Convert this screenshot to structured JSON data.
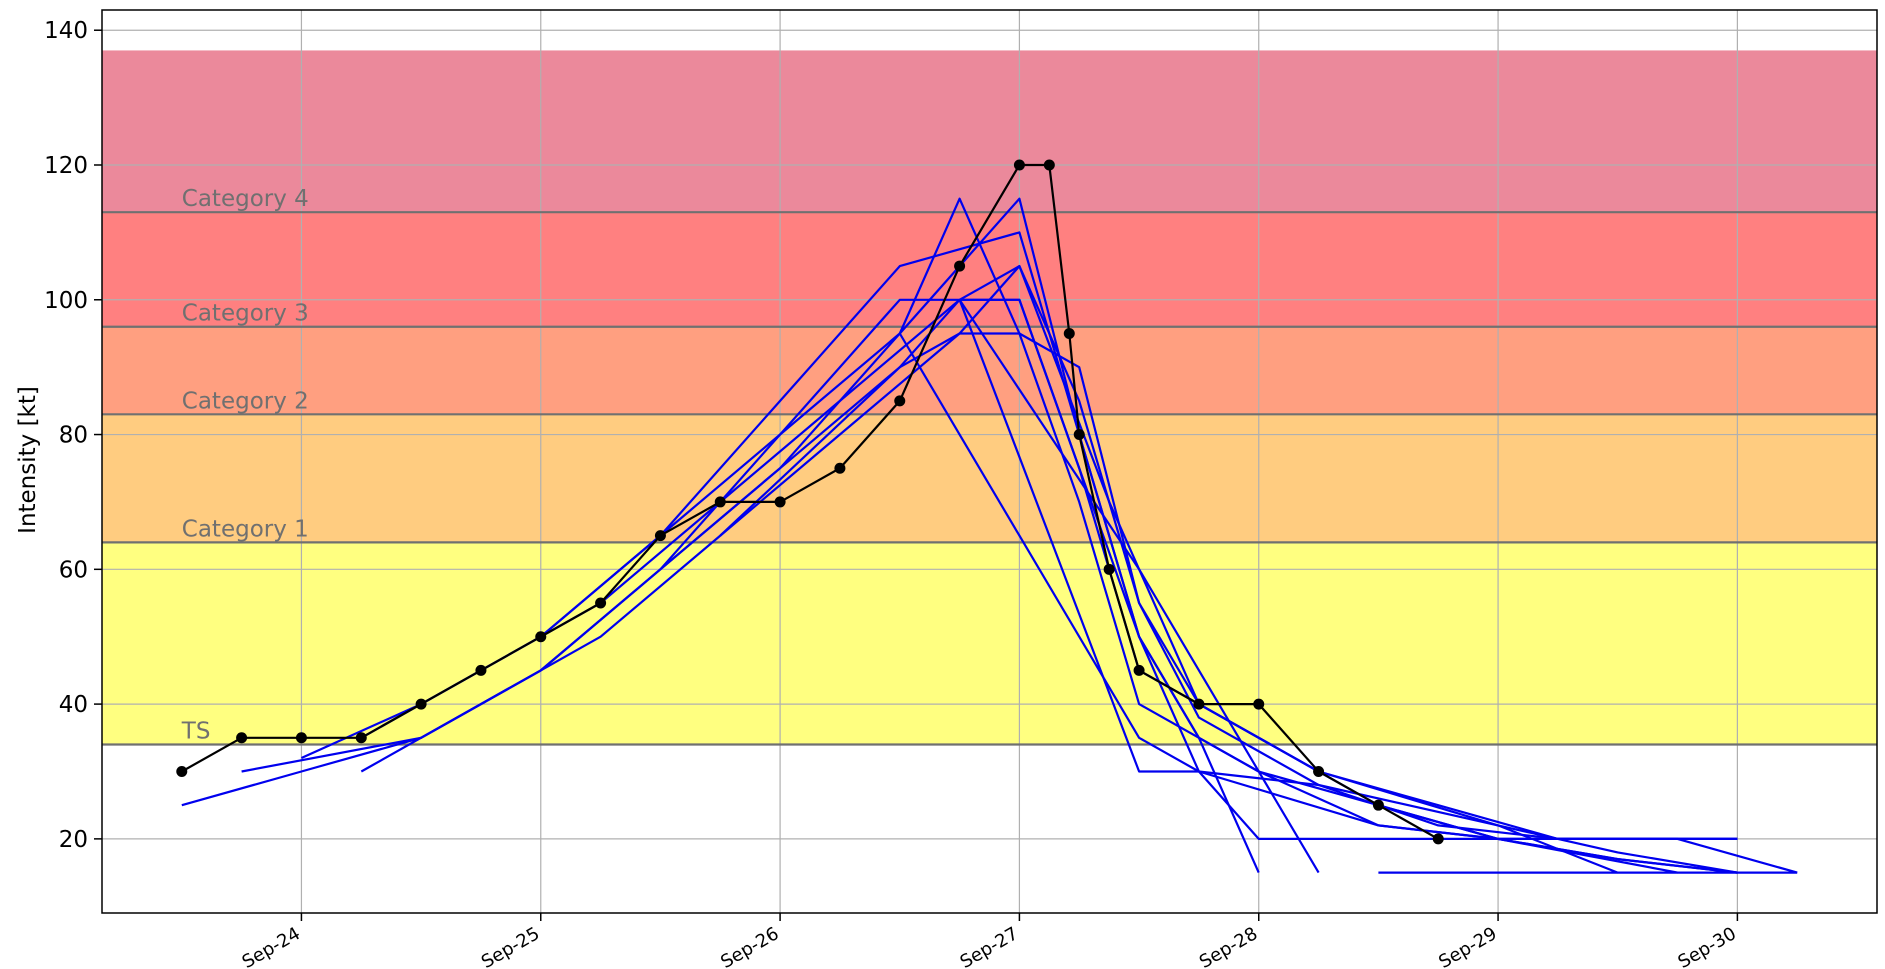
{
  "chart_data": {
    "type": "line",
    "title": "",
    "xlabel": "",
    "ylabel": "Intensity [kt]",
    "x_unit": "date",
    "xlim": [
      "2023-09-23 04:00",
      "2023-09-30 14:00"
    ],
    "ylim": [
      9,
      143
    ],
    "grid": true,
    "x_ticks": [
      {
        "x": "2023-09-24 00:00",
        "label": "Sep-24"
      },
      {
        "x": "2023-09-25 00:00",
        "label": "Sep-25"
      },
      {
        "x": "2023-09-26 00:00",
        "label": "Sep-26"
      },
      {
        "x": "2023-09-27 00:00",
        "label": "Sep-27"
      },
      {
        "x": "2023-09-28 00:00",
        "label": "Sep-28"
      },
      {
        "x": "2023-09-29 00:00",
        "label": "Sep-29"
      },
      {
        "x": "2023-09-30 00:00",
        "label": "Sep-30"
      }
    ],
    "y_ticks": [
      20,
      40,
      60,
      80,
      100,
      120,
      140
    ],
    "bands": [
      {
        "label": "TS",
        "from": 34,
        "to": 64,
        "color": "#ffff80"
      },
      {
        "label": "Category 1",
        "from": 64,
        "to": 83,
        "color": "#ffcc80"
      },
      {
        "label": "Category 2",
        "from": 83,
        "to": 96,
        "color": "#ff9f80"
      },
      {
        "label": "Category 3",
        "from": 96,
        "to": 113,
        "color": "#ff8080"
      },
      {
        "label": "Category 4",
        "from": 113,
        "to": 137,
        "color": "#eb899b"
      }
    ],
    "colors": {
      "observed": "#000000",
      "forecast": "#0000ee",
      "threshold_line": "#707070",
      "band_label": "#707070",
      "grid": "#b0b0b0"
    },
    "observed": {
      "x": [
        "2023-09-23 12:00",
        "2023-09-23 18:00",
        "2023-09-24 00:00",
        "2023-09-24 06:00",
        "2023-09-24 12:00",
        "2023-09-24 18:00",
        "2023-09-25 00:00",
        "2023-09-25 06:00",
        "2023-09-25 12:00",
        "2023-09-25 18:00",
        "2023-09-26 00:00",
        "2023-09-26 06:00",
        "2023-09-26 12:00",
        "2023-09-26 18:00",
        "2023-09-27 00:00",
        "2023-09-27 03:00",
        "2023-09-27 05:00",
        "2023-09-27 06:00",
        "2023-09-27 09:00",
        "2023-09-27 12:00",
        "2023-09-27 18:00",
        "2023-09-28 00:00",
        "2023-09-28 06:00",
        "2023-09-28 12:00",
        "2023-09-28 18:00"
      ],
      "y": [
        30,
        35,
        35,
        35,
        40,
        45,
        50,
        55,
        65,
        70,
        70,
        75,
        85,
        105,
        120,
        120,
        95,
        80,
        60,
        45,
        40,
        40,
        30,
        25,
        20
      ]
    },
    "series": [
      {
        "x": [
          "2023-09-23 12:00",
          "2023-09-24 00:00",
          "2023-09-24 12:00",
          "2023-09-25 00:00",
          "2023-09-25 12:00",
          "2023-09-26 00:00",
          "2023-09-26 12:00",
          "2023-09-26 18:00",
          "2023-09-27 00:00",
          "2023-09-27 06:00",
          "2023-09-27 12:00",
          "2023-09-28 00:00",
          "2023-09-28 12:00",
          "2023-09-29 00:00",
          "2023-09-29 12:00",
          "2023-09-30 00:00"
        ],
        "y": [
          25,
          30,
          35,
          45,
          60,
          75,
          95,
          115,
          95,
          70,
          40,
          30,
          22,
          20,
          20,
          20
        ]
      },
      {
        "x": [
          "2023-09-23 18:00",
          "2023-09-24 12:00",
          "2023-09-25 00:00",
          "2023-09-25 12:00",
          "2023-09-26 00:00",
          "2023-09-26 12:00",
          "2023-09-26 18:00",
          "2023-09-27 00:00",
          "2023-09-27 06:00",
          "2023-09-27 12:00",
          "2023-09-28 00:00",
          "2023-09-28 12:00",
          "2023-09-29 00:00",
          "2023-09-29 12:00",
          "2023-09-30 00:00"
        ],
        "y": [
          30,
          35,
          45,
          60,
          80,
          100,
          100,
          100,
          75,
          45,
          35,
          25,
          20,
          17,
          15
        ]
      },
      {
        "x": [
          "2023-09-24 06:00",
          "2023-09-24 18:00",
          "2023-09-25 06:00",
          "2023-09-25 18:00",
          "2023-09-26 06:00",
          "2023-09-26 18:00",
          "2023-09-27 00:00",
          "2023-09-27 06:00",
          "2023-09-27 12:00",
          "2023-09-27 18:00",
          "2023-09-28 06:00",
          "2023-09-28 18:00",
          "2023-09-29 06:00",
          "2023-09-29 18:00",
          "2023-09-30 06:00"
        ],
        "y": [
          30,
          40,
          50,
          65,
          80,
          95,
          105,
          85,
          55,
          38,
          28,
          22,
          20,
          20,
          15
        ]
      },
      {
        "x": [
          "2023-09-24 00:00",
          "2023-09-24 12:00",
          "2023-09-25 00:00",
          "2023-09-25 12:00",
          "2023-09-26 00:00",
          "2023-09-26 12:00",
          "2023-09-27 00:00",
          "2023-09-27 06:00",
          "2023-09-27 12:00",
          "2023-09-27 18:00",
          "2023-09-28 00:00",
          "2023-09-28 12:00",
          "2023-09-29 00:00",
          "2023-09-29 12:00",
          "2023-09-30 00:00"
        ],
        "y": [
          32,
          40,
          50,
          65,
          85,
          105,
          110,
          80,
          50,
          35,
          30,
          25,
          20,
          17,
          15
        ]
      },
      {
        "x": [
          "2023-09-24 06:00",
          "2023-09-24 18:00",
          "2023-09-25 06:00",
          "2023-09-25 18:00",
          "2023-09-26 06:00",
          "2023-09-26 18:00",
          "2023-09-27 00:00",
          "2023-09-27 09:00",
          "2023-09-27 18:00",
          "2023-09-28 06:00",
          "2023-09-29 00:00",
          "2023-09-29 12:00"
        ],
        "y": [
          35,
          45,
          55,
          70,
          85,
          100,
          105,
          70,
          40,
          30,
          22,
          15
        ]
      },
      {
        "x": [
          "2023-09-25 00:00",
          "2023-09-25 12:00",
          "2023-09-26 00:00",
          "2023-09-26 12:00",
          "2023-09-26 18:00",
          "2023-09-27 00:00",
          "2023-09-27 06:00",
          "2023-09-27 12:00",
          "2023-09-27 18:00",
          "2023-09-28 00:00"
        ],
        "y": [
          50,
          65,
          80,
          95,
          105,
          115,
          80,
          50,
          35,
          15
        ]
      },
      {
        "x": [
          "2023-09-25 12:00",
          "2023-09-26 00:00",
          "2023-09-26 12:00",
          "2023-09-26 18:00",
          "2023-09-27 00:00",
          "2023-09-27 06:00",
          "2023-09-27 12:00",
          "2023-09-27 18:00",
          "2023-09-28 06:00",
          "2023-09-28 18:00",
          "2023-09-29 06:00",
          "2023-09-30 00:00"
        ],
        "y": [
          60,
          75,
          90,
          95,
          95,
          90,
          55,
          40,
          30,
          25,
          20,
          20
        ]
      },
      {
        "x": [
          "2023-09-25 18:00",
          "2023-09-26 12:00",
          "2023-09-26 18:00",
          "2023-09-27 00:00",
          "2023-09-27 12:00",
          "2023-09-27 18:00",
          "2023-09-28 00:00",
          "2023-09-28 12:00",
          "2023-09-29 00:00",
          "2023-09-30 00:00"
        ],
        "y": [
          65,
          90,
          100,
          100,
          50,
          30,
          20,
          20,
          20,
          20
        ]
      },
      {
        "x": [
          "2023-09-26 12:00",
          "2023-09-27 00:00",
          "2023-09-27 12:00",
          "2023-09-27 18:00",
          "2023-09-28 12:00",
          "2023-09-29 00:00",
          "2023-09-29 18:00"
        ],
        "y": [
          95,
          65,
          35,
          30,
          22,
          20,
          15
        ]
      },
      {
        "x": [
          "2023-09-26 18:00",
          "2023-09-27 12:00",
          "2023-09-28 06:00"
        ],
        "y": [
          100,
          60,
          15
        ]
      },
      {
        "x": [
          "2023-09-26 18:00",
          "2023-09-27 12:00",
          "2023-09-27 18:00",
          "2023-09-28 06:00",
          "2023-09-29 00:00",
          "2023-09-29 12:00",
          "2023-09-30 00:00"
        ],
        "y": [
          100,
          30,
          30,
          28,
          22,
          18,
          15
        ]
      },
      {
        "x": [
          "2023-09-28 12:00",
          "2023-09-29 12:00",
          "2023-09-30 06:00"
        ],
        "y": [
          15,
          15,
          15
        ]
      }
    ]
  }
}
